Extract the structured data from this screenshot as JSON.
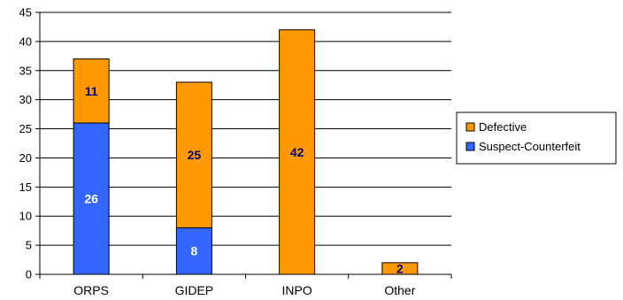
{
  "chart_data": {
    "type": "bar",
    "stacked": true,
    "categories": [
      "ORPS",
      "GIDEP",
      "INPO",
      "Other"
    ],
    "series": [
      {
        "name": "Suspect-Counterfeit",
        "values": [
          26,
          8,
          0,
          0
        ],
        "labels": [
          "26",
          "8",
          "",
          ""
        ],
        "color": "#3366ff",
        "label_color": "#ffffff"
      },
      {
        "name": "Defective",
        "values": [
          11,
          25,
          42,
          2
        ],
        "labels": [
          "11",
          "25",
          "42",
          "2"
        ],
        "color": "#ff9900",
        "label_color": "#000080"
      }
    ],
    "y_ticks": [
      "0",
      "5",
      "10",
      "15",
      "20",
      "25",
      "30",
      "35",
      "40",
      "45"
    ],
    "ylim": [
      0,
      45
    ],
    "grid": true,
    "legend_position": "right",
    "legend_order": [
      "Defective",
      "Suspect-Counterfeit"
    ]
  }
}
